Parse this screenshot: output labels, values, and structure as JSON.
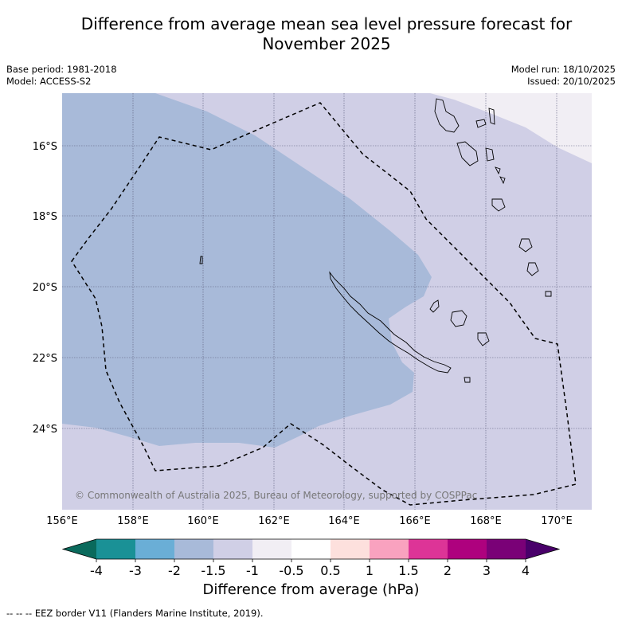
{
  "title_line1": "Difference from average mean sea level pressure forecast for",
  "title_line2": "November 2025",
  "meta": {
    "base_period": "Base period: 1981-2018",
    "model": "Model: ACCESS-S2",
    "model_run": "Model run: 18/10/2025",
    "issued": "Issued: 20/10/2025"
  },
  "axes": {
    "lon_ticks": [
      "156°E",
      "158°E",
      "160°E",
      "162°E",
      "164°E",
      "166°E",
      "168°E",
      "170°E"
    ],
    "lat_ticks": [
      "16°S",
      "18°S",
      "20°S",
      "22°S",
      "24°S"
    ]
  },
  "copyright": "© Commonwealth of Australia 2025, Bureau of Meteorology, supported by COSPPac",
  "colorbar": {
    "ticks": [
      "-4",
      "-3",
      "-2",
      "-1.5",
      "-1",
      "-0.5",
      "0.5",
      "1",
      "1.5",
      "2",
      "3",
      "4"
    ],
    "colors": [
      "#1a9196",
      "#6aaed6",
      "#a8bad9",
      "#d0cfe6",
      "#f1eef4",
      "#ffffff",
      "#fde0dd",
      "#f9a2bf",
      "#dd3497",
      "#ae017e",
      "#7a0177"
    ],
    "under_color": "#0a6a5c",
    "over_color": "#49006a",
    "label": "Difference from average (hPa)"
  },
  "legend_footnote": "--  --  -- EEZ border V11 (Flanders Marine Institute, 2019)."
}
